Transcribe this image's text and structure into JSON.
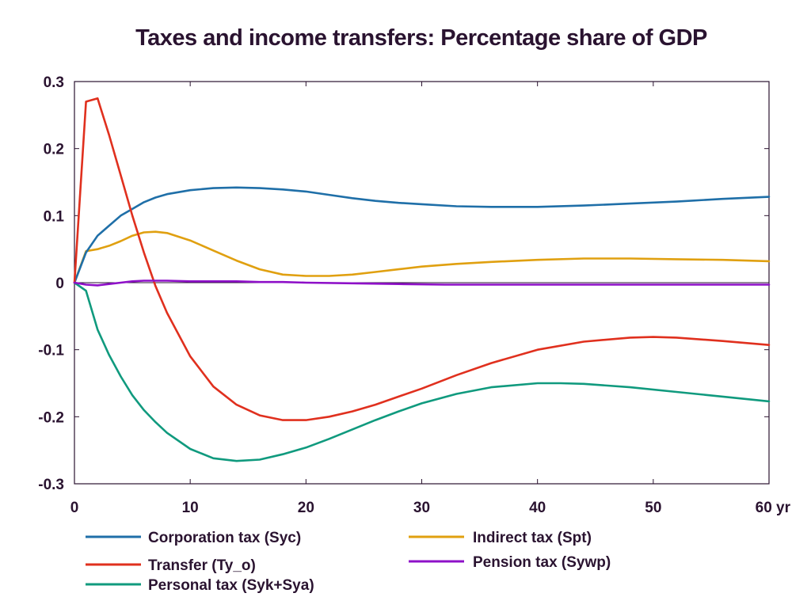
{
  "chart_data": {
    "type": "line",
    "title": "Taxes and income transfers: Percentage share of GDP",
    "x_unit_label": "yr",
    "xlim": [
      0,
      60
    ],
    "ylim": [
      -0.3,
      0.3
    ],
    "x_ticks": [
      0,
      10,
      20,
      30,
      40,
      50,
      60
    ],
    "y_ticks": [
      0.3,
      0.2,
      0.1,
      0,
      -0.1,
      -0.2,
      -0.3
    ],
    "y_tick_labels": [
      "0.3",
      "0.2",
      "0.1",
      "0",
      "-0.1",
      "-0.2",
      "-0.3"
    ],
    "x_tick_labels": [
      "0",
      "10",
      "20",
      "30",
      "40",
      "50",
      "60 yr"
    ],
    "grid": false,
    "legend_position": "bottom",
    "series": [
      {
        "name": "Corporation tax (Syc)",
        "color": "#1f6fa8",
        "x": [
          0,
          1,
          2,
          3,
          4,
          5,
          6,
          7,
          8,
          10,
          12,
          14,
          16,
          18,
          20,
          22,
          24,
          26,
          28,
          30,
          33,
          36,
          40,
          44,
          48,
          52,
          56,
          60
        ],
        "y": [
          0,
          0.045,
          0.07,
          0.085,
          0.1,
          0.11,
          0.12,
          0.127,
          0.132,
          0.138,
          0.141,
          0.142,
          0.141,
          0.139,
          0.136,
          0.131,
          0.126,
          0.122,
          0.119,
          0.117,
          0.114,
          0.113,
          0.113,
          0.115,
          0.118,
          0.121,
          0.125,
          0.128
        ]
      },
      {
        "name": "Transfer (Ty_o)",
        "color": "#e0301e",
        "x": [
          0,
          1,
          2,
          3,
          4,
          5,
          6,
          7,
          8,
          10,
          12,
          14,
          16,
          18,
          20,
          22,
          24,
          26,
          28,
          30,
          33,
          36,
          40,
          44,
          48,
          50,
          52,
          56,
          60
        ],
        "y": [
          0,
          0.27,
          0.275,
          0.22,
          0.16,
          0.1,
          0.045,
          -0.005,
          -0.045,
          -0.11,
          -0.155,
          -0.182,
          -0.198,
          -0.205,
          -0.205,
          -0.2,
          -0.192,
          -0.182,
          -0.17,
          -0.158,
          -0.138,
          -0.12,
          -0.1,
          -0.088,
          -0.082,
          -0.081,
          -0.082,
          -0.087,
          -0.093
        ]
      },
      {
        "name": "Personal tax (Syk+Sya)",
        "color": "#109a7e",
        "x": [
          0,
          1,
          2,
          3,
          4,
          5,
          6,
          7,
          8,
          10,
          12,
          14,
          16,
          18,
          20,
          22,
          24,
          26,
          28,
          30,
          33,
          36,
          40,
          42,
          44,
          48,
          52,
          56,
          60
        ],
        "y": [
          0,
          -0.012,
          -0.07,
          -0.108,
          -0.14,
          -0.168,
          -0.19,
          -0.208,
          -0.224,
          -0.248,
          -0.262,
          -0.266,
          -0.264,
          -0.256,
          -0.246,
          -0.233,
          -0.219,
          -0.205,
          -0.192,
          -0.18,
          -0.166,
          -0.156,
          -0.15,
          -0.15,
          -0.151,
          -0.156,
          -0.163,
          -0.17,
          -0.177
        ]
      },
      {
        "name": "Indirect tax (Spt)",
        "color": "#e0a010",
        "x": [
          0,
          1,
          2,
          3,
          4,
          5,
          6,
          7,
          8,
          10,
          12,
          14,
          16,
          18,
          20,
          22,
          24,
          26,
          28,
          30,
          33,
          36,
          40,
          44,
          48,
          52,
          56,
          60
        ],
        "y": [
          0,
          0.047,
          0.05,
          0.055,
          0.062,
          0.07,
          0.075,
          0.076,
          0.074,
          0.063,
          0.048,
          0.033,
          0.02,
          0.012,
          0.01,
          0.01,
          0.012,
          0.016,
          0.02,
          0.024,
          0.028,
          0.031,
          0.034,
          0.036,
          0.036,
          0.035,
          0.034,
          0.032
        ]
      },
      {
        "name": "Pension tax (Sywp)",
        "color": "#8e10c8",
        "x": [
          0,
          1,
          2,
          3,
          4,
          5,
          6,
          7,
          8,
          10,
          12,
          14,
          16,
          18,
          20,
          24,
          28,
          32,
          36,
          40,
          50,
          60
        ],
        "y": [
          0,
          -0.003,
          -0.004,
          -0.002,
          0,
          0.002,
          0.003,
          0.003,
          0.003,
          0.002,
          0.002,
          0.002,
          0.001,
          0.001,
          0,
          -0.001,
          -0.002,
          -0.003,
          -0.003,
          -0.003,
          -0.003,
          -0.003
        ]
      }
    ],
    "legend_order": [
      0,
      3,
      1,
      4,
      2
    ]
  }
}
